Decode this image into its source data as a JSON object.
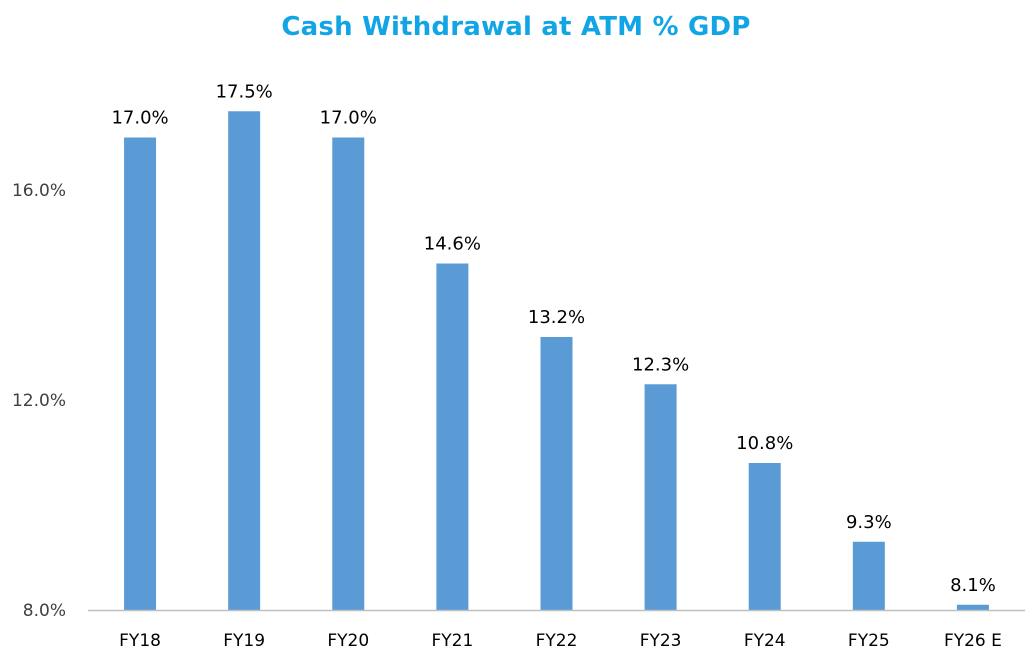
{
  "chart_data": {
    "type": "bar",
    "title": "Cash Withdrawal at ATM % GDP",
    "categories": [
      "FY18",
      "FY19",
      "FY20",
      "FY21",
      "FY22",
      "FY23",
      "FY24",
      "FY25",
      "FY26 E"
    ],
    "series": [
      {
        "values": [
          17.0,
          17.5,
          17.0,
          14.6,
          13.2,
          12.3,
          10.8,
          9.3,
          8.1
        ],
        "data_labels": [
          "17.0%",
          "17.5%",
          "17.0%",
          "14.6%",
          "13.2%",
          "12.3%",
          "10.8%",
          "9.3%",
          "8.1%"
        ]
      }
    ],
    "xlabel": "",
    "ylabel": "",
    "ylim": [
      8.0,
      17.5
    ],
    "yticks": [
      8.0,
      12.0,
      16.0
    ],
    "ytick_labels": [
      "8.0%",
      "12.0%",
      "16.0%"
    ],
    "grid": false,
    "legend": "none",
    "colors": {
      "title": "#12a5e6",
      "bar": "#5b9bd5",
      "axis_line": "#bfbfbf"
    }
  }
}
